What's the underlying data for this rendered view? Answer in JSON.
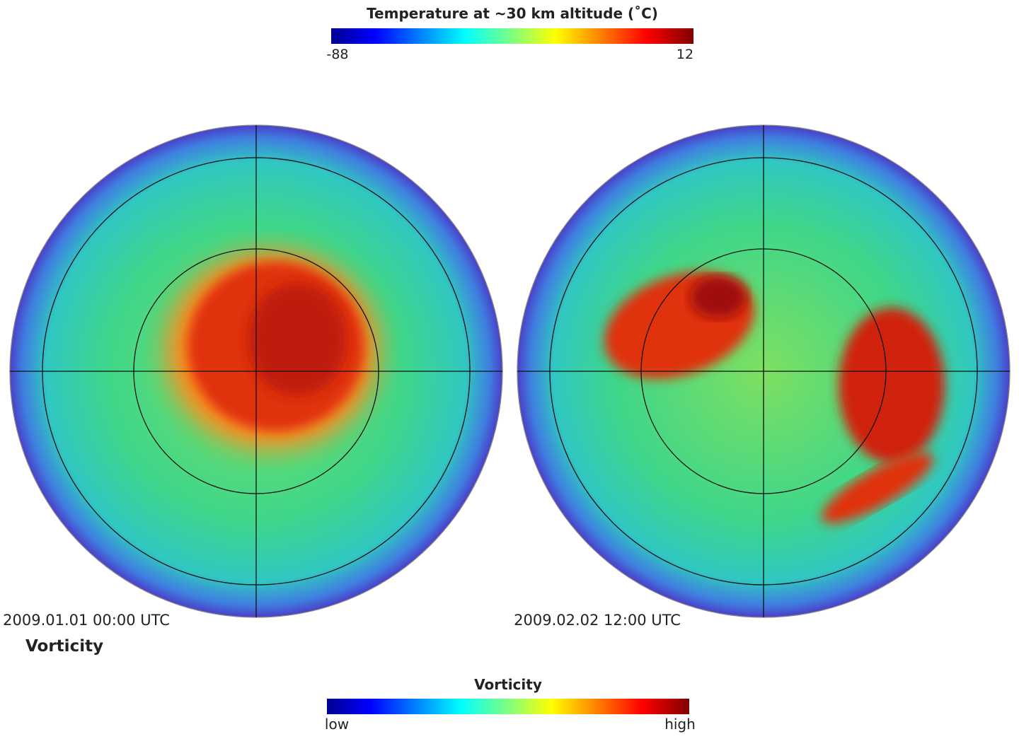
{
  "temperature_colorbar": {
    "title": "Temperature at ~30 km altitude (˚C)",
    "min_label": "-88",
    "max_label": "12"
  },
  "maps": [
    {
      "timestamp": "2009.01.01 00:00 UTC"
    },
    {
      "timestamp": "2009.02.02 12:00 UTC"
    }
  ],
  "side_label": "Vorticity",
  "vorticity_colorbar": {
    "title": "Vorticity",
    "min_label": "low",
    "max_label": "high"
  }
}
